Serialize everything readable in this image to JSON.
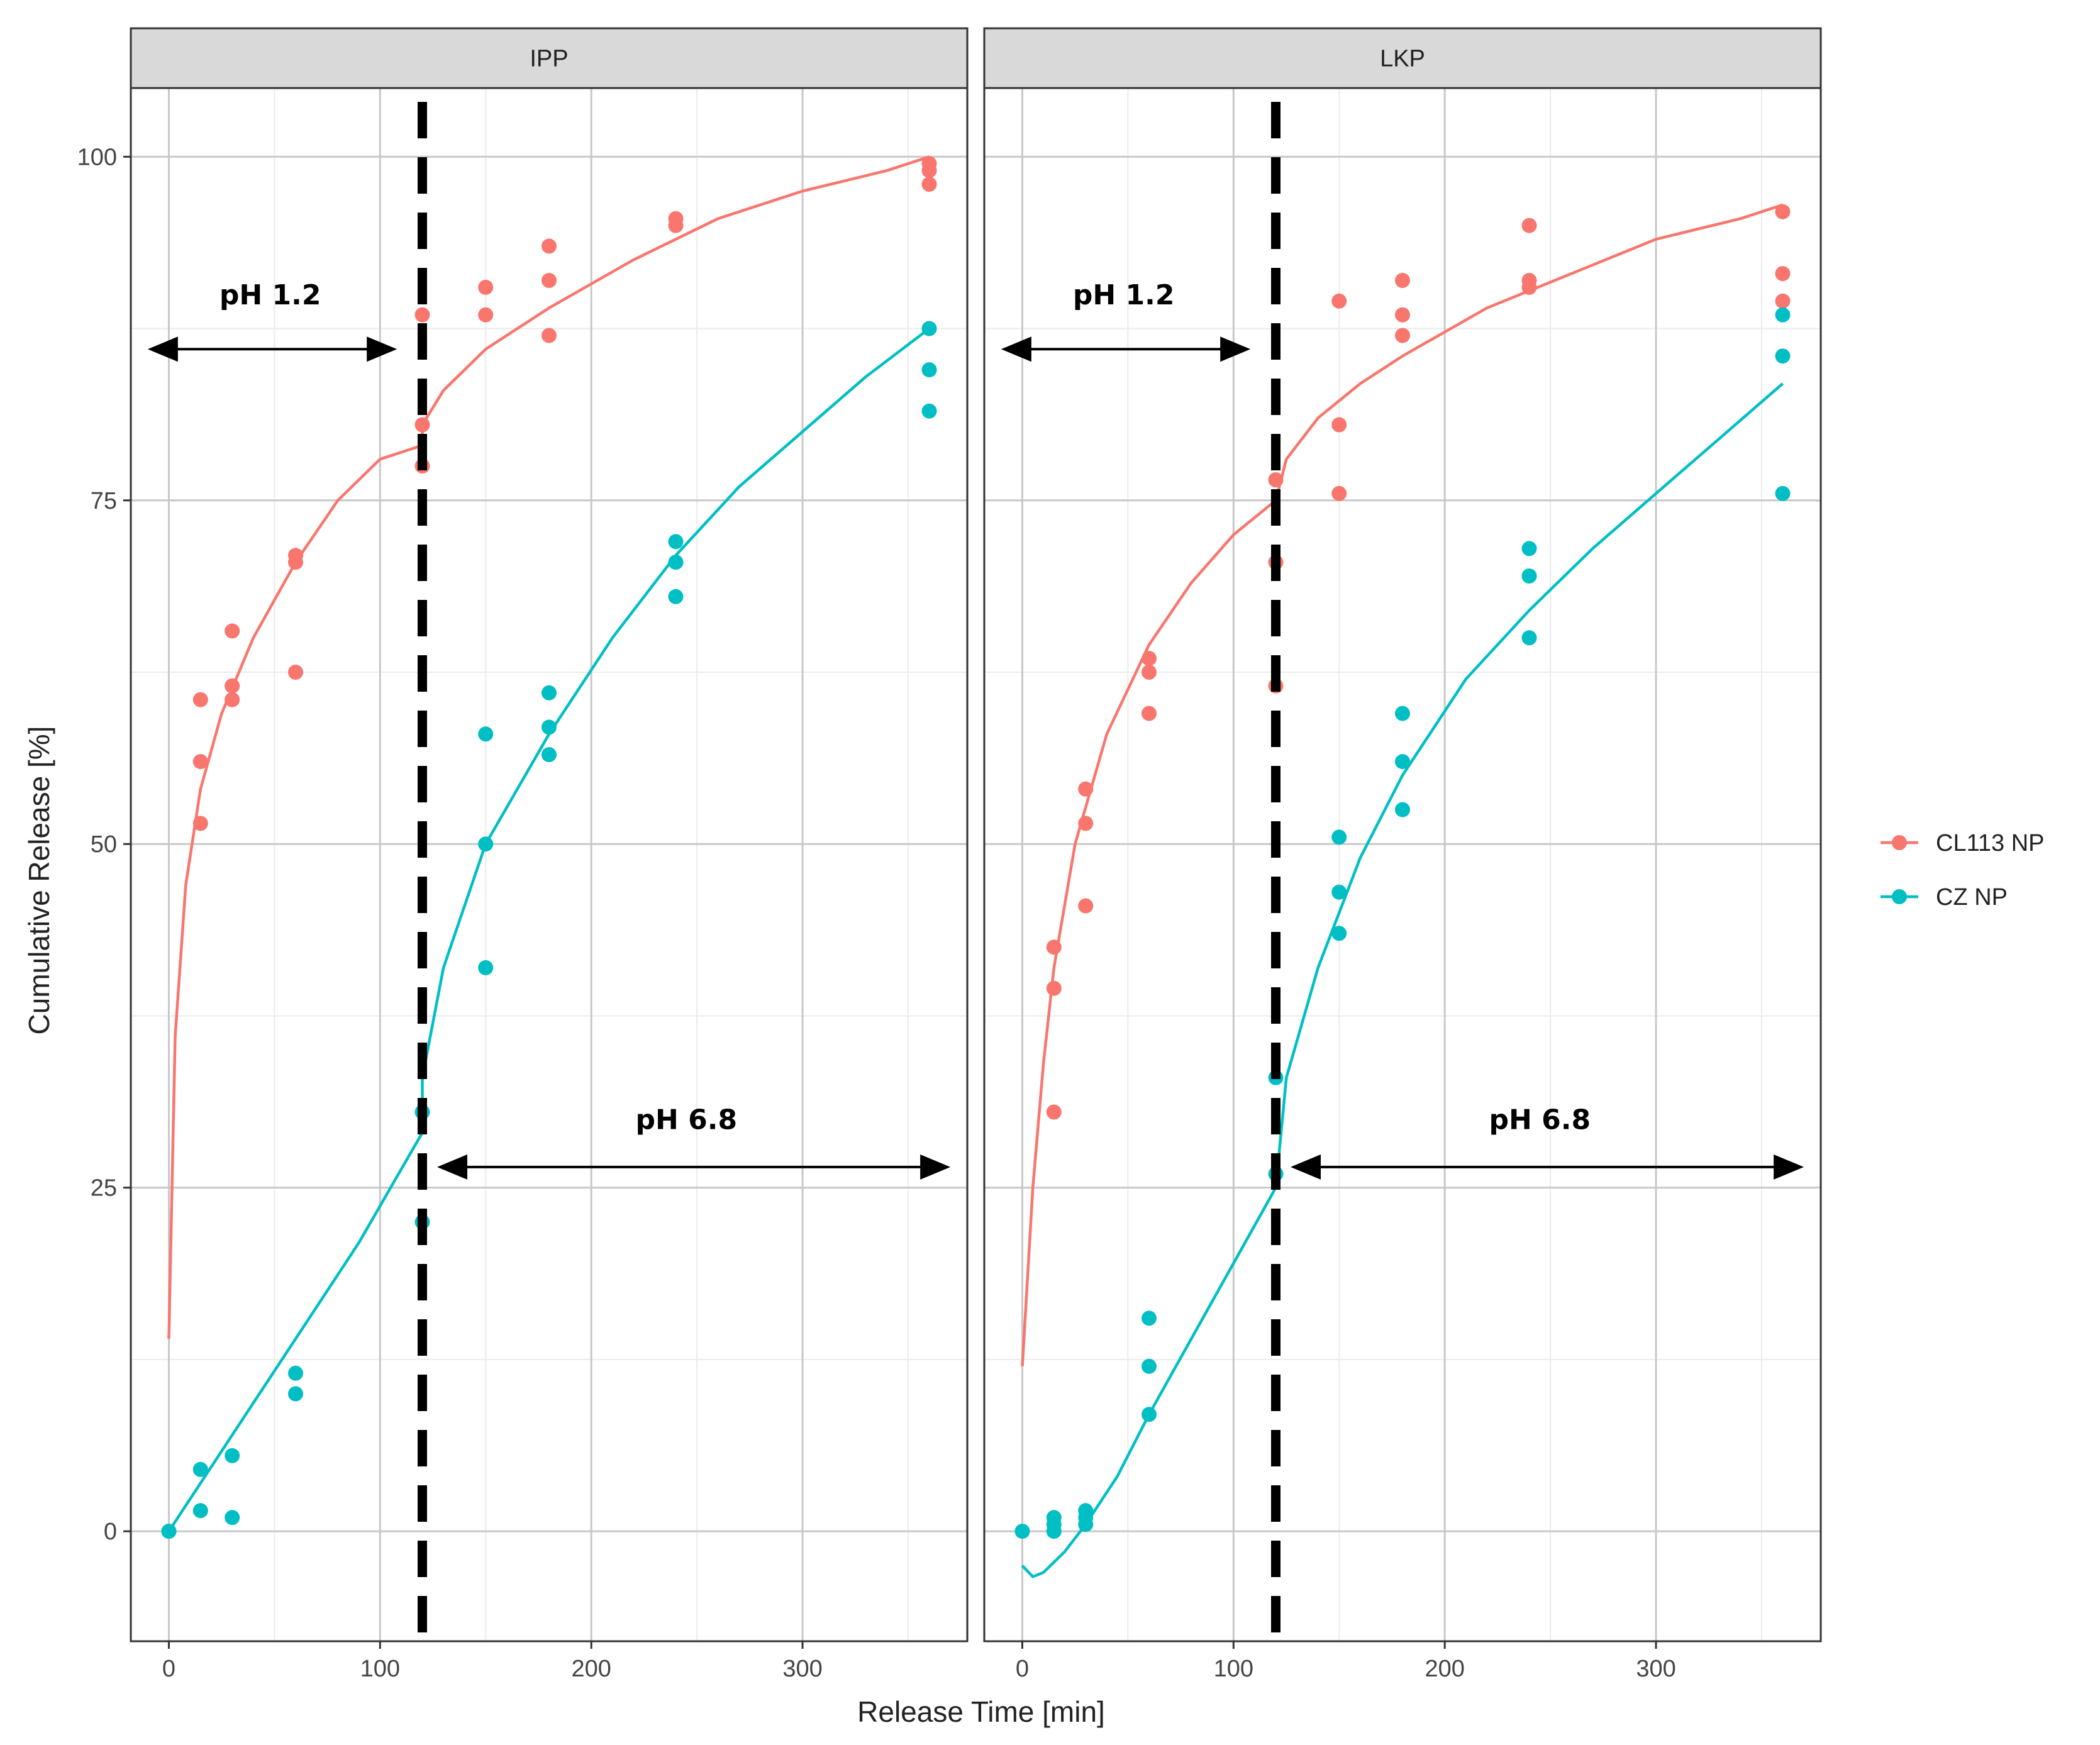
{
  "chart_data": {
    "type": "scatter",
    "ylabel": "Cumulative Release [%]",
    "xlabel": "Release Time [min]",
    "xlim": [
      -18,
      378
    ],
    "ylim": [
      -8,
      105
    ],
    "x_ticks": [
      0,
      100,
      200,
      300
    ],
    "y_ticks": [
      0,
      25,
      50,
      75,
      100
    ],
    "grid": true,
    "legend_position": "right",
    "phase_change_x": 120,
    "colors": {
      "CL113 NP": "#F8766D",
      "CZ NP": "#00BFC4"
    },
    "annotations": [
      {
        "text": "pH 1.2",
        "label_x": 48,
        "label_y": 90,
        "arrow_from": -10,
        "arrow_to": 108,
        "arrow_y": 86
      },
      {
        "text": "pH 6.8",
        "label_x": 245,
        "label_y": 30,
        "arrow_from": 127,
        "arrow_to": 370,
        "arrow_y": 26.5
      }
    ],
    "series": [
      {
        "name": "CL113 NP"
      },
      {
        "name": "CZ NP"
      }
    ],
    "panels": [
      {
        "label": "IPP",
        "points": {
          "CL113 NP": [
            [
              15,
              60.5
            ],
            [
              15,
              56
            ],
            [
              15,
              51.5
            ],
            [
              30,
              65.5
            ],
            [
              30,
              61.5
            ],
            [
              30,
              60.5
            ],
            [
              60,
              71
            ],
            [
              60,
              70.5
            ],
            [
              60,
              62.5
            ],
            [
              120,
              88.5
            ],
            [
              120,
              80.5
            ],
            [
              120,
              77.5
            ],
            [
              150,
              90.5
            ],
            [
              150,
              88.5
            ],
            [
              180,
              93.5
            ],
            [
              180,
              91
            ],
            [
              180,
              87
            ],
            [
              240,
              95.5
            ],
            [
              240,
              95
            ],
            [
              360,
              99.5
            ],
            [
              360,
              99
            ],
            [
              360,
              98
            ]
          ],
          "CZ NP": [
            [
              0,
              0
            ],
            [
              0,
              0
            ],
            [
              15,
              4.5
            ],
            [
              15,
              1.5
            ],
            [
              30,
              5.5
            ],
            [
              30,
              1
            ],
            [
              60,
              11.5
            ],
            [
              60,
              10
            ],
            [
              120,
              30.5
            ],
            [
              120,
              22.5
            ],
            [
              150,
              58
            ],
            [
              150,
              50
            ],
            [
              150,
              41
            ],
            [
              180,
              61
            ],
            [
              180,
              58.5
            ],
            [
              180,
              56.5
            ],
            [
              240,
              72
            ],
            [
              240,
              70.5
            ],
            [
              240,
              68
            ],
            [
              360,
              87.5
            ],
            [
              360,
              84.5
            ],
            [
              360,
              81.5
            ]
          ]
        },
        "fits": {
          "CL113 NP": [
            [
              0,
              14
            ],
            [
              3,
              36
            ],
            [
              8,
              47
            ],
            [
              15,
              54
            ],
            [
              25,
              59.5
            ],
            [
              40,
              65
            ],
            [
              60,
              70.5
            ],
            [
              80,
              75
            ],
            [
              100,
              78
            ],
            [
              120,
              79
            ],
            [
              120,
              80.5
            ],
            [
              130,
              83
            ],
            [
              150,
              86
            ],
            [
              180,
              89
            ],
            [
              220,
              92.5
            ],
            [
              260,
              95.5
            ],
            [
              300,
              97.5
            ],
            [
              340,
              99
            ],
            [
              360,
              100
            ]
          ],
          "CZ NP": [
            [
              0,
              0
            ],
            [
              30,
              7
            ],
            [
              60,
              14
            ],
            [
              90,
              21
            ],
            [
              120,
              29
            ],
            [
              120,
              33
            ],
            [
              130,
              41
            ],
            [
              150,
              50
            ],
            [
              180,
              58
            ],
            [
              210,
              65
            ],
            [
              240,
              71
            ],
            [
              270,
              76
            ],
            [
              300,
              80
            ],
            [
              330,
              84
            ],
            [
              360,
              87.5
            ]
          ]
        }
      },
      {
        "label": "LKP",
        "points": {
          "CL113 NP": [
            [
              15,
              42.5
            ],
            [
              15,
              39.5
            ],
            [
              15,
              30.5
            ],
            [
              30,
              54
            ],
            [
              30,
              51.5
            ],
            [
              30,
              45.5
            ],
            [
              60,
              63.5
            ],
            [
              60,
              62.5
            ],
            [
              60,
              59.5
            ],
            [
              120,
              76.5
            ],
            [
              120,
              70.5
            ],
            [
              120,
              61.5
            ],
            [
              150,
              89.5
            ],
            [
              150,
              80.5
            ],
            [
              150,
              75.5
            ],
            [
              180,
              91
            ],
            [
              180,
              88.5
            ],
            [
              180,
              87
            ],
            [
              240,
              95
            ],
            [
              240,
              91
            ],
            [
              240,
              90.5
            ],
            [
              360,
              96
            ],
            [
              360,
              91.5
            ],
            [
              360,
              89.5
            ]
          ],
          "CZ NP": [
            [
              0,
              0
            ],
            [
              15,
              1
            ],
            [
              15,
              0.5
            ],
            [
              15,
              0
            ],
            [
              30,
              1.5
            ],
            [
              30,
              1
            ],
            [
              30,
              0.5
            ],
            [
              60,
              15.5
            ],
            [
              60,
              12
            ],
            [
              60,
              8.5
            ],
            [
              120,
              33
            ],
            [
              120,
              26
            ],
            [
              150,
              50.5
            ],
            [
              150,
              46.5
            ],
            [
              150,
              43.5
            ],
            [
              180,
              59.5
            ],
            [
              180,
              56
            ],
            [
              180,
              52.5
            ],
            [
              240,
              71.5
            ],
            [
              240,
              69.5
            ],
            [
              240,
              65
            ],
            [
              360,
              88.5
            ],
            [
              360,
              85.5
            ],
            [
              360,
              75.5
            ]
          ]
        },
        "fits": {
          "CL113 NP": [
            [
              0,
              12
            ],
            [
              5,
              25
            ],
            [
              10,
              34
            ],
            [
              15,
              41
            ],
            [
              25,
              50
            ],
            [
              40,
              58
            ],
            [
              60,
              64.5
            ],
            [
              80,
              69
            ],
            [
              100,
              72.5
            ],
            [
              120,
              75
            ],
            [
              125,
              78
            ],
            [
              140,
              81
            ],
            [
              160,
              83.5
            ],
            [
              180,
              85.5
            ],
            [
              220,
              89
            ],
            [
              260,
              91.5
            ],
            [
              300,
              94
            ],
            [
              340,
              95.5
            ],
            [
              360,
              96.5
            ]
          ],
          "CZ NP": [
            [
              0,
              -2.5
            ],
            [
              5,
              -3.3
            ],
            [
              10,
              -3
            ],
            [
              20,
              -1.5
            ],
            [
              30,
              0.5
            ],
            [
              45,
              4
            ],
            [
              60,
              8.5
            ],
            [
              80,
              14
            ],
            [
              100,
              19.5
            ],
            [
              120,
              25
            ],
            [
              125,
              33
            ],
            [
              140,
              41
            ],
            [
              160,
              49
            ],
            [
              180,
              55
            ],
            [
              210,
              62
            ],
            [
              240,
              67
            ],
            [
              270,
              71.5
            ],
            [
              300,
              75.5
            ],
            [
              330,
              79.5
            ],
            [
              360,
              83.5
            ]
          ]
        }
      }
    ]
  }
}
